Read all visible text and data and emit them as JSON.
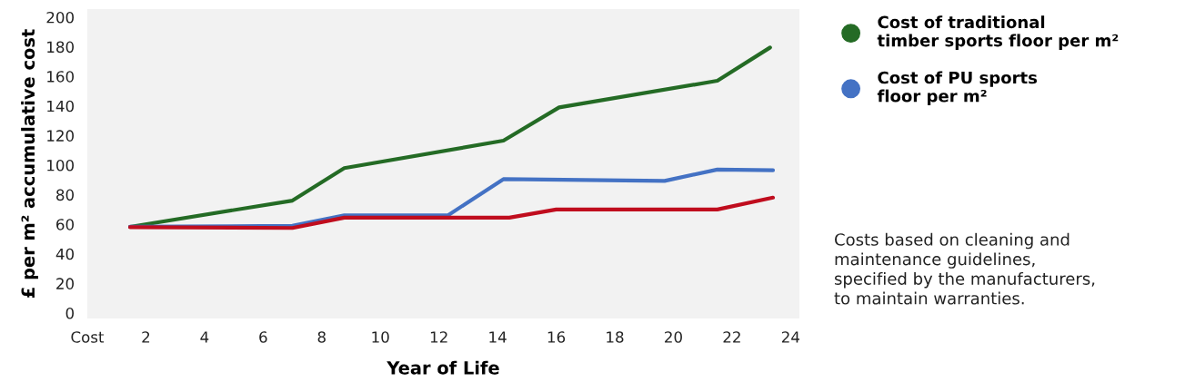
{
  "chart_data": {
    "type": "line",
    "xlabel": "Year of Life",
    "ylabel": "£ per m² accumulative cost",
    "xlim": [
      0,
      24.3
    ],
    "xticks": [
      {
        "value": 0,
        "label": "Cost"
      },
      2,
      4,
      6,
      8,
      10,
      12,
      14,
      16,
      18,
      20,
      22,
      24
    ],
    "ylim": [
      -3.7,
      205.5
    ],
    "yticks": [
      0,
      20,
      40,
      60,
      80,
      100,
      120,
      140,
      160,
      180,
      200
    ],
    "grid": false,
    "legend": "right",
    "marker": "none",
    "line_style": "solid",
    "series": [
      {
        "name": "Cost of traditional\ntimber sports floor per m²",
        "color": "#246b25",
        "x": [
          1.46,
          7.0,
          8.77,
          14.2,
          16.1,
          21.5,
          23.3
        ],
        "values": [
          58.3,
          76,
          98,
          116.5,
          139,
          157,
          179.5
        ]
      },
      {
        "name": "Cost of PU sports\nfloor per m²",
        "color": "#4472c4",
        "x": [
          1.46,
          7.0,
          8.77,
          12.3,
          14.2,
          19.7,
          21.5,
          23.4
        ],
        "values": [
          58.3,
          59,
          66,
          66,
          90.5,
          89.3,
          97,
          96.5
        ]
      },
      {
        "color": "#c00d1e",
        "x": [
          1.46,
          7.0,
          8.77,
          14.4,
          16.0,
          21.5,
          23.4
        ],
        "values": [
          58,
          57.5,
          64.5,
          64.5,
          70,
          70,
          78
        ]
      }
    ],
    "annotations": [
      "Costs based on cleaning and\nmaintenance guidelines,\nspecified by the manufacturers,\nto maintain warranties."
    ]
  }
}
